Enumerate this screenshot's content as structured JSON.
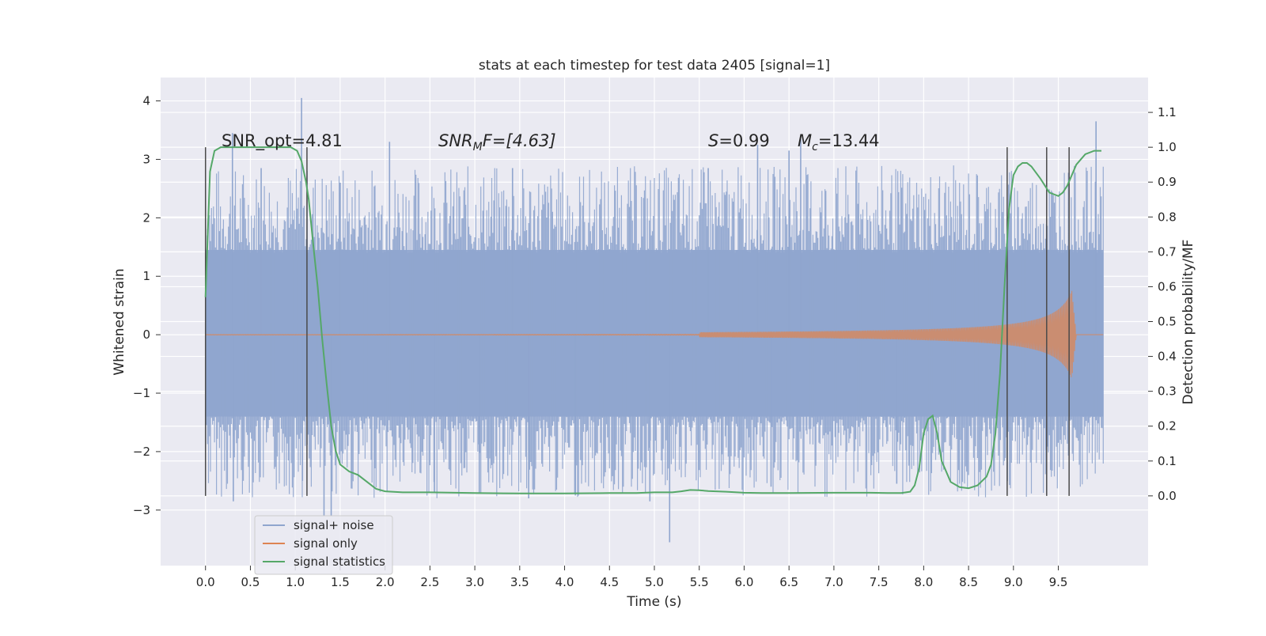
{
  "chart_data": {
    "type": "line",
    "title": "stats at each timestep for test data 2405 [signal=1]",
    "xlabel": "Time (s)",
    "ylabel": "Whitened strain",
    "ylabel_right": "Detection probability/MF",
    "xlim": [
      -0.5,
      10.5
    ],
    "ylim": [
      -3.95,
      4.4
    ],
    "ylim_right": [
      -0.2,
      1.2
    ],
    "x_ticks": [
      "0.0",
      "0.5",
      "1.0",
      "1.5",
      "2.0",
      "2.5",
      "3.0",
      "3.5",
      "4.0",
      "4.5",
      "5.0",
      "5.5",
      "6.0",
      "6.5",
      "7.0",
      "7.5",
      "8.0",
      "8.5",
      "9.0",
      "9.5"
    ],
    "y_ticks": [
      "−3",
      "−2",
      "−1",
      "0",
      "1",
      "2",
      "3",
      "4"
    ],
    "y_right_ticks": [
      "0.0",
      "0.1",
      "0.2",
      "0.3",
      "0.4",
      "0.5",
      "0.6",
      "0.7",
      "0.8",
      "0.9",
      "1.0",
      "1.1"
    ],
    "grid": true,
    "legend_position": "lower-left",
    "annotations": {
      "snr_opt": "SNR_opt=4.81",
      "snr_mf_base": "SNR",
      "snr_mf_sub": "M",
      "snr_mf_rest": "F=[4.63]",
      "s_italic": "S",
      "s_rest": "=0.99",
      "mc_italic": "M",
      "mc_sub": "c",
      "mc_rest": "=13.44"
    },
    "series": [
      {
        "name": "signal+ noise",
        "color": "#8fa5ce",
        "x_range": [
          0.0,
          10.0
        ],
        "band": [
          -1.4,
          1.45
        ],
        "spikes": [
          {
            "x": 0.02,
            "y": 1.7
          },
          {
            "x": 0.3,
            "y": 3.45
          },
          {
            "x": 0.62,
            "y": 2.85
          },
          {
            "x": 1.07,
            "y": 4.05
          },
          {
            "x": 1.5,
            "y": 2.6
          },
          {
            "x": 2.05,
            "y": 3.3
          },
          {
            "x": 3.42,
            "y": 2.85
          },
          {
            "x": 5.6,
            "y": 2.85
          },
          {
            "x": 6.15,
            "y": 3.25
          },
          {
            "x": 6.5,
            "y": 3.15
          },
          {
            "x": 6.63,
            "y": 3.35
          },
          {
            "x": 9.92,
            "y": 3.65
          },
          {
            "x": 0.31,
            "y": -2.85
          },
          {
            "x": 1.08,
            "y": -2.5
          },
          {
            "x": 1.32,
            "y": -3.1
          },
          {
            "x": 1.4,
            "y": -3.1
          },
          {
            "x": 2.55,
            "y": -2.7
          },
          {
            "x": 3.05,
            "y": -2.7
          },
          {
            "x": 3.6,
            "y": -2.8
          },
          {
            "x": 4.12,
            "y": -2.75
          },
          {
            "x": 4.95,
            "y": -2.85
          },
          {
            "x": 5.17,
            "y": -3.55
          },
          {
            "x": 6.3,
            "y": -2.6
          },
          {
            "x": 7.7,
            "y": -2.55
          }
        ]
      },
      {
        "name": "signal only",
        "color": "#dd8452",
        "x_range": [
          0.0,
          10.0
        ],
        "chirp_peak_t": 9.65,
        "chirp_peak_amp": 0.75
      },
      {
        "name": "signal statistics",
        "color": "#55a868",
        "axis": "right",
        "x": [
          0.0,
          0.05,
          0.1,
          0.17,
          0.25,
          0.4,
          0.6,
          0.8,
          0.95,
          1.02,
          1.07,
          1.12,
          1.15,
          1.2,
          1.25,
          1.3,
          1.35,
          1.4,
          1.45,
          1.5,
          1.6,
          1.7,
          1.8,
          1.9,
          2.0,
          2.2,
          2.5,
          3.0,
          3.5,
          4.0,
          4.5,
          4.8,
          5.0,
          5.2,
          5.3,
          5.4,
          5.5,
          5.6,
          5.8,
          6.0,
          6.2,
          6.5,
          7.0,
          7.4,
          7.6,
          7.75,
          7.85,
          7.9,
          7.95,
          8.0,
          8.05,
          8.1,
          8.15,
          8.2,
          8.3,
          8.4,
          8.5,
          8.6,
          8.7,
          8.75,
          8.8,
          8.85,
          8.9,
          8.95,
          9.0,
          9.05,
          9.1,
          9.15,
          9.2,
          9.3,
          9.4,
          9.5,
          9.55,
          9.6,
          9.65,
          9.7,
          9.8,
          9.9,
          9.98
        ],
        "values": [
          0.57,
          0.93,
          0.99,
          1.0,
          1.0,
          1.0,
          1.0,
          1.0,
          1.0,
          0.99,
          0.96,
          0.9,
          0.85,
          0.72,
          0.6,
          0.45,
          0.32,
          0.2,
          0.13,
          0.09,
          0.07,
          0.06,
          0.04,
          0.02,
          0.013,
          0.01,
          0.01,
          0.008,
          0.007,
          0.007,
          0.008,
          0.008,
          0.01,
          0.01,
          0.013,
          0.017,
          0.016,
          0.014,
          0.012,
          0.009,
          0.008,
          0.008,
          0.009,
          0.009,
          0.008,
          0.008,
          0.012,
          0.03,
          0.08,
          0.18,
          0.22,
          0.23,
          0.18,
          0.1,
          0.04,
          0.025,
          0.022,
          0.03,
          0.055,
          0.09,
          0.18,
          0.35,
          0.6,
          0.82,
          0.92,
          0.945,
          0.955,
          0.955,
          0.945,
          0.91,
          0.87,
          0.86,
          0.87,
          0.89,
          0.92,
          0.95,
          0.98,
          0.99,
          0.99
        ]
      }
    ],
    "vlines_x": [
      0.0,
      1.13,
      8.93,
      9.37,
      9.62
    ]
  }
}
